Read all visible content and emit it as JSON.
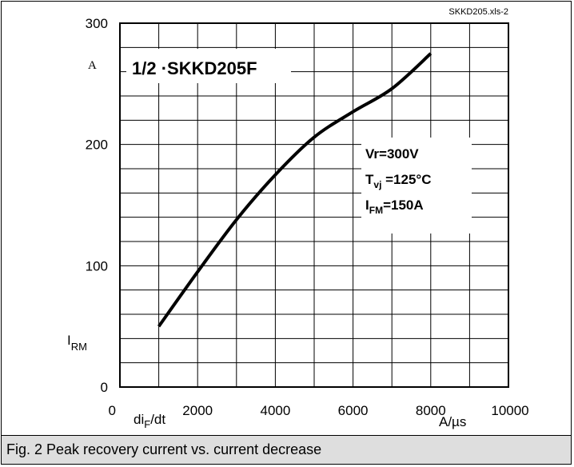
{
  "file_tag": "SKKD205.xls-2",
  "caption": "Fig. 2 Peak recovery current vs. current decrease",
  "chart_data": {
    "type": "line",
    "title": "1/2 ·SKKD205F",
    "conditions": [
      {
        "main": "Vr=300V",
        "sub": "",
        "rest": ""
      },
      {
        "main": "T",
        "sub": "vj",
        "rest": " =125°C"
      },
      {
        "main": "I",
        "sub": "FM",
        "rest": "=150A"
      }
    ],
    "xlabel": {
      "main": "di",
      "sub": "F",
      "rest": "/dt"
    },
    "xunit": "A/µs",
    "ylabel": {
      "main": "I",
      "sub": "RM"
    },
    "yunit": "A",
    "xlim": [
      0,
      10000
    ],
    "ylim": [
      0,
      300
    ],
    "x_ticks": [
      "0",
      "2000",
      "4000",
      "6000",
      "8000",
      "10000"
    ],
    "y_ticks": [
      "0",
      "100",
      "200",
      "300"
    ],
    "grid": true,
    "series": [
      {
        "x": [
          1000,
          2000,
          3000,
          4000,
          5000,
          6000,
          7000,
          8000
        ],
        "y": [
          50,
          95,
          138,
          175,
          206,
          227,
          246,
          275
        ]
      }
    ]
  }
}
